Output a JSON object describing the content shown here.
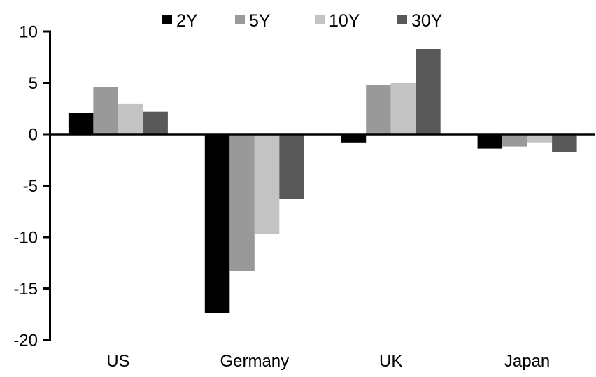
{
  "chart_data": {
    "type": "bar",
    "categories": [
      "US",
      "Germany",
      "UK",
      "Japan"
    ],
    "series": [
      {
        "name": "2Y",
        "color": "#000000",
        "values": [
          2.1,
          -17.4,
          -0.8,
          -1.4
        ]
      },
      {
        "name": "5Y",
        "color": "#999999",
        "values": [
          4.6,
          -13.3,
          4.8,
          -1.2
        ]
      },
      {
        "name": "10Y",
        "color": "#c3c3c3",
        "values": [
          3.0,
          -9.7,
          5.0,
          -0.8
        ]
      },
      {
        "name": "30Y",
        "color": "#595959",
        "values": [
          2.2,
          -6.3,
          8.3,
          -1.7
        ]
      }
    ],
    "title": "",
    "xlabel": "",
    "ylabel": "",
    "ylim": [
      -20,
      10
    ],
    "yticks": [
      10,
      5,
      0,
      -5,
      -10,
      -15,
      -20
    ],
    "ytick_labels": [
      "10",
      "5",
      "0",
      "-5",
      "-10",
      "-15",
      "-20"
    ],
    "grid": false,
    "legend_position": "top",
    "axis_color": "#000000",
    "background_color": "#ffffff"
  }
}
